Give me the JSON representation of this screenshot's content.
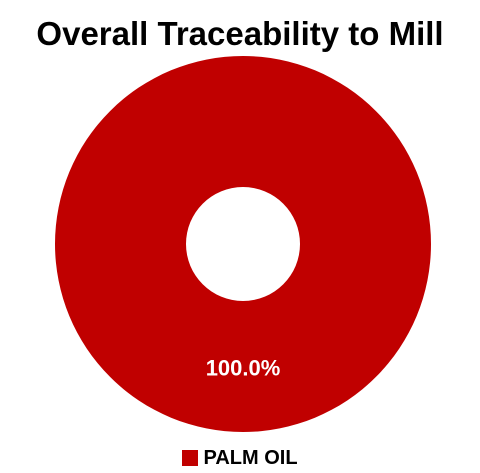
{
  "chart_data": {
    "type": "pie",
    "title": "Overall Traceability to Mill",
    "categories": [
      "PALM OIL"
    ],
    "values": [
      100.0
    ],
    "data_labels": [
      "100.0%"
    ],
    "colors": [
      "#c00000"
    ],
    "donut": true,
    "legend": "bottom",
    "legend_entries": [
      {
        "label": "PALM OIL",
        "color": "#c00000"
      }
    ]
  }
}
